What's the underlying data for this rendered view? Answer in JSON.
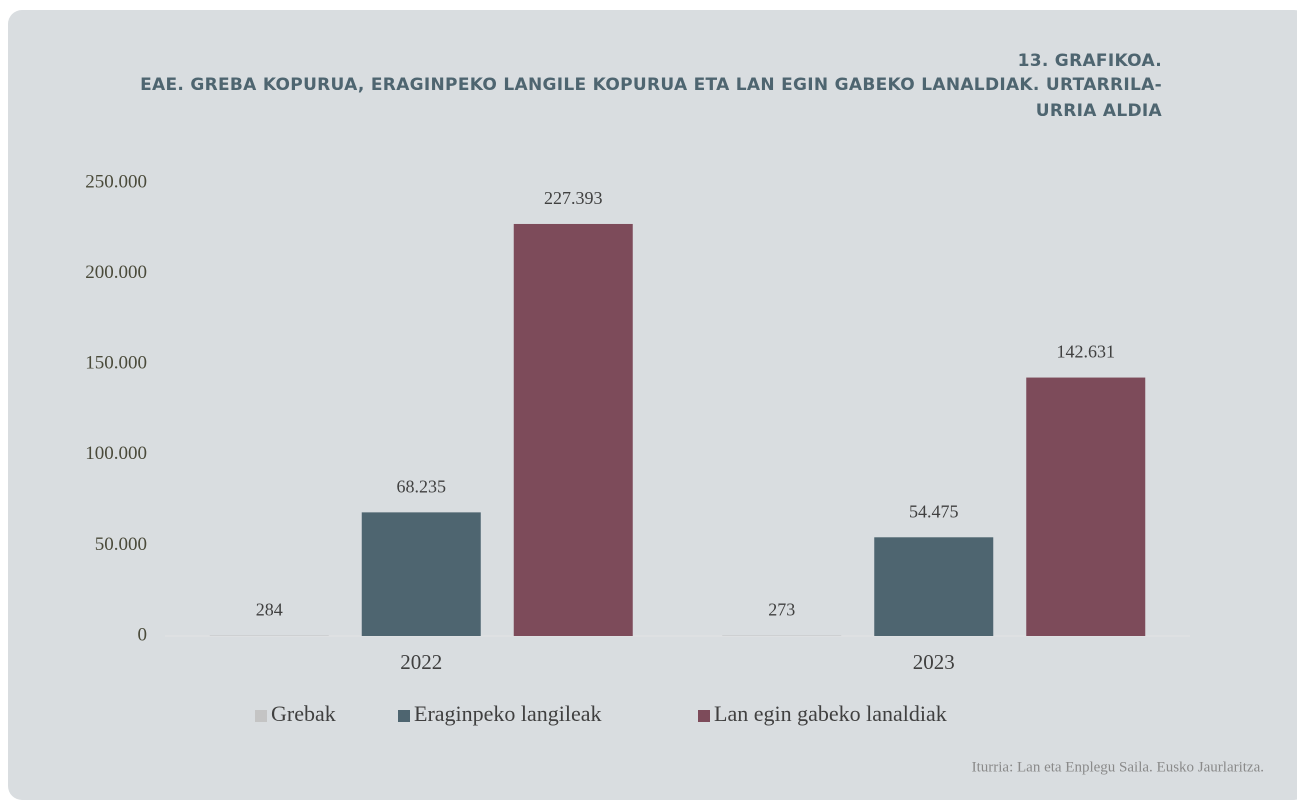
{
  "chart_data": {
    "type": "bar",
    "title_number": "13. GRAFIKOA.",
    "title": "EAE. GREBA KOPURUA, ERAGINPEKO LANGILE KOPURUA ETA LAN EGIN GABEKO LANALDIAK. URTARRILA-URRIA ALDIA",
    "categories": [
      "2022",
      "2023"
    ],
    "series": [
      {
        "name": "Grebak",
        "color": "#c4c4c4",
        "values": [
          284,
          273
        ],
        "value_labels": [
          "284",
          "273"
        ]
      },
      {
        "name": "Eraginpeko langileak",
        "color": "#4e6570",
        "values": [
          68235,
          54475
        ],
        "value_labels": [
          "68.235",
          "54.475"
        ]
      },
      {
        "name": "Lan egin gabeko lanaldiak",
        "color": "#7d4b5a",
        "values": [
          227393,
          142631
        ],
        "value_labels": [
          "227.393",
          "142.631"
        ]
      }
    ],
    "ylim": [
      0,
      250000
    ],
    "yticks": [
      0,
      {
        "value": 50000,
        "label": "50.000"
      },
      {
        "value": 100000,
        "label": "100.000"
      },
      {
        "value": 150000,
        "label": "150.000"
      },
      {
        "value": 200000,
        "label": "200.000"
      },
      {
        "value": 250000,
        "label": "250.000"
      }
    ],
    "legend": "bottom",
    "source": "Iturria: Lan eta Enplegu Saila. Eusko Jaurlaritza."
  }
}
